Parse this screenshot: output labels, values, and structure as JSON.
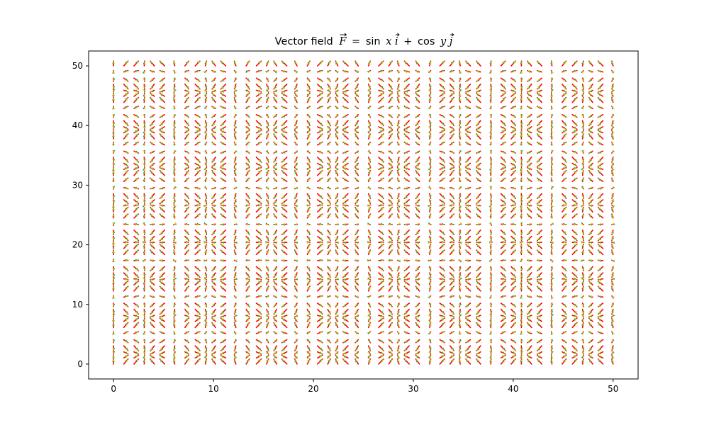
{
  "chart_data": {
    "type": "quiver",
    "title": {
      "prefix": "Vector field",
      "F": "F",
      "eq": "=",
      "sin": "sin",
      "x": "x",
      "i": "i",
      "plus": "+",
      "cos": "cos",
      "y": "y",
      "j": "j"
    },
    "field": {
      "u": "sin(x)",
      "v": "cos(y)"
    },
    "grid": {
      "x_start": 0,
      "x_stop": 50,
      "x_count": 50,
      "y_start": 0,
      "y_stop": 50,
      "y_count": 50
    },
    "xlim": [
      -2.5,
      52.5
    ],
    "ylim": [
      -2.5,
      52.5
    ],
    "xticks": [
      0,
      10,
      20,
      30,
      40,
      50
    ],
    "yticks": [
      0,
      10,
      20,
      30,
      40,
      50
    ],
    "xticklabels": [
      "0",
      "10",
      "20",
      "30",
      "40",
      "50"
    ],
    "yticklabels": [
      "0",
      "10",
      "20",
      "30",
      "40",
      "50"
    ],
    "xlabel": "",
    "ylabel": "",
    "grid_lines": false,
    "arrow_colors": {
      "stem": "#ff0000",
      "head_left": "#ffd700",
      "head_right": "#2ca25f"
    }
  }
}
